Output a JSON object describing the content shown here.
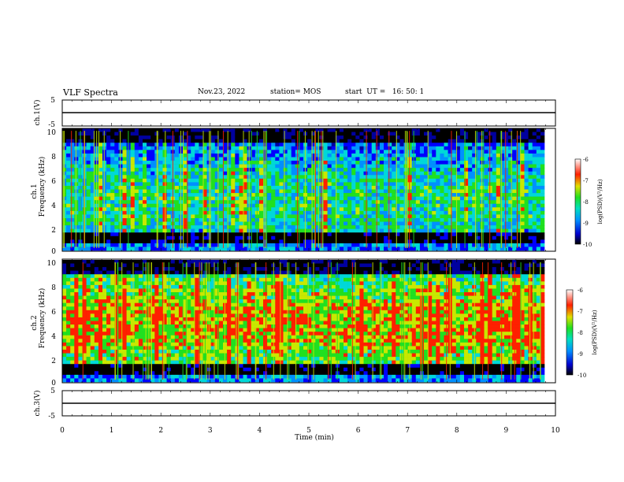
{
  "header": {
    "title": "VLF Spectra",
    "date": "Nov.23, 2022",
    "station": "station= MOS",
    "start_ut": "start  UT =   16: 50: 1"
  },
  "chart_data": [
    {
      "type": "line",
      "panel": "ch1-voltage",
      "ylabel": "ch.1(V)",
      "ylim": [
        -5,
        5
      ],
      "yticks": [
        "5",
        "-5"
      ],
      "xlim": [
        0,
        10
      ],
      "series": [
        {
          "values_description_level": -1.2
        }
      ]
    },
    {
      "type": "heatmap",
      "panel": "ch1-spectrogram",
      "ylabel_top": "ch.1",
      "ylabel": "Frequency (kHz)",
      "ylim": [
        0,
        10
      ],
      "yticks": [
        "0",
        "2",
        "4",
        "6",
        "8",
        "10"
      ],
      "xlim": [
        0,
        10
      ],
      "colorbar": {
        "label": "log(PSD)(V²/Hz)",
        "range": [
          -10,
          -6
        ],
        "ticks": [
          "-6",
          "-7",
          "-8",
          "-9",
          "-10"
        ]
      }
    },
    {
      "type": "heatmap",
      "panel": "ch2-spectrogram",
      "ylabel_top": "ch.2",
      "ylabel": "Frequency (kHz)",
      "ylim": [
        0,
        10
      ],
      "yticks": [
        "0",
        "2",
        "4",
        "6",
        "8",
        "10"
      ],
      "xlim": [
        0,
        10
      ],
      "colorbar": {
        "label": "log(PSD)(V²/Hz)",
        "range": [
          -10,
          -6
        ],
        "ticks": [
          "-6",
          "-7",
          "-8",
          "-9",
          "-10"
        ]
      }
    },
    {
      "type": "line",
      "panel": "ch3-voltage",
      "ylabel": "ch.3(V)",
      "ylim": [
        -5,
        5
      ],
      "yticks": [
        "5",
        "-5"
      ],
      "xlim": [
        0,
        10
      ],
      "xlabel": "Time (min)",
      "xticks": [
        "0",
        "1",
        "2",
        "3",
        "4",
        "5",
        "6",
        "7",
        "8",
        "9",
        "10"
      ],
      "series": [
        {
          "values_description_level": -1.2
        }
      ]
    }
  ]
}
